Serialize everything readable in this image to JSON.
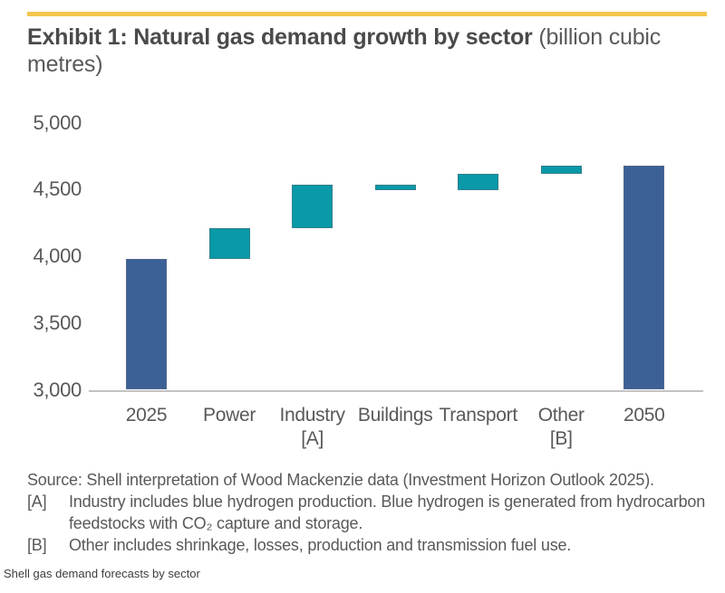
{
  "accent_color": "#F2C64E",
  "title": {
    "bold": "Exhibit 1: Natural gas demand growth by sector",
    "unit": " (billion cubic metres)"
  },
  "chart_data": {
    "type": "bar",
    "subtype": "waterfall",
    "title": "Natural gas demand growth by sector",
    "unit": "billion cubic metres",
    "ylim": [
      3000,
      5000
    ],
    "yticks": [
      3000,
      3500,
      4000,
      4500,
      5000
    ],
    "ytick_labels": [
      "3,000",
      "3,500",
      "4,000",
      "4,500",
      "5,000"
    ],
    "grid": false,
    "legend": null,
    "colors": {
      "total": "#3B6197",
      "total_border": "#50668E",
      "change": "#0999A8",
      "change_border": "#337F8B",
      "axis_line": "#C3C3C3",
      "tick_text": "#595959"
    },
    "bars": [
      {
        "key": "2025",
        "label": "2025",
        "sublabel": "",
        "role": "total",
        "from": 3000,
        "to": 3980,
        "value": 3980
      },
      {
        "key": "power",
        "label": "Power",
        "sublabel": "",
        "role": "change",
        "from": 3980,
        "to": 4210,
        "value": 230
      },
      {
        "key": "industry",
        "label": "Industry",
        "sublabel": "[A]",
        "role": "change",
        "from": 4210,
        "to": 4540,
        "value": 330
      },
      {
        "key": "buildings",
        "label": "Buildings",
        "sublabel": "",
        "role": "change",
        "from": 4495,
        "to": 4540,
        "value": -45
      },
      {
        "key": "transport",
        "label": "Transport",
        "sublabel": "",
        "role": "change",
        "from": 4495,
        "to": 4620,
        "value": 125
      },
      {
        "key": "other",
        "label": "Other",
        "sublabel": "[B]",
        "role": "change",
        "from": 4620,
        "to": 4680,
        "value": 60
      },
      {
        "key": "2050",
        "label": "2050",
        "sublabel": "",
        "role": "total",
        "from": 3000,
        "to": 4680,
        "value": 4680
      }
    ]
  },
  "footnotes": {
    "source": "Source: Shell interpretation of Wood Mackenzie data (Investment Horizon Outlook 2025).",
    "notes": [
      {
        "tag": "[A]",
        "text": "Industry includes blue hydrogen production. Blue hydrogen is generated from hydrocarbon feedstocks with CO₂ capture and storage."
      },
      {
        "tag": "[B]",
        "text": "Other includes shrinkage, losses, production and transmission fuel use."
      }
    ]
  },
  "caption": "Shell gas demand forecasts by sector"
}
